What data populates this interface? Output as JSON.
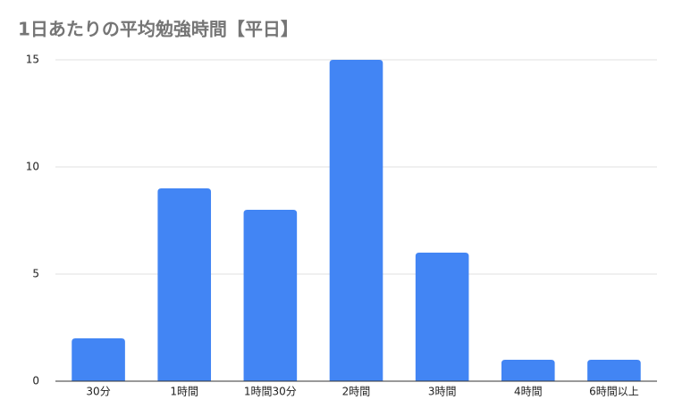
{
  "chart_data": {
    "type": "bar",
    "title": "1日あたりの平均勉強時間【平日】",
    "categories": [
      "30分",
      "1時間",
      "1時間30分",
      "2時間",
      "3時間",
      "4時間",
      "6時間以上"
    ],
    "values": [
      2,
      9,
      8,
      15,
      6,
      1,
      1
    ],
    "color": "#4285f4",
    "ylim": [
      0,
      15
    ],
    "yticks": [
      0,
      5,
      10,
      15
    ],
    "grid": true
  }
}
